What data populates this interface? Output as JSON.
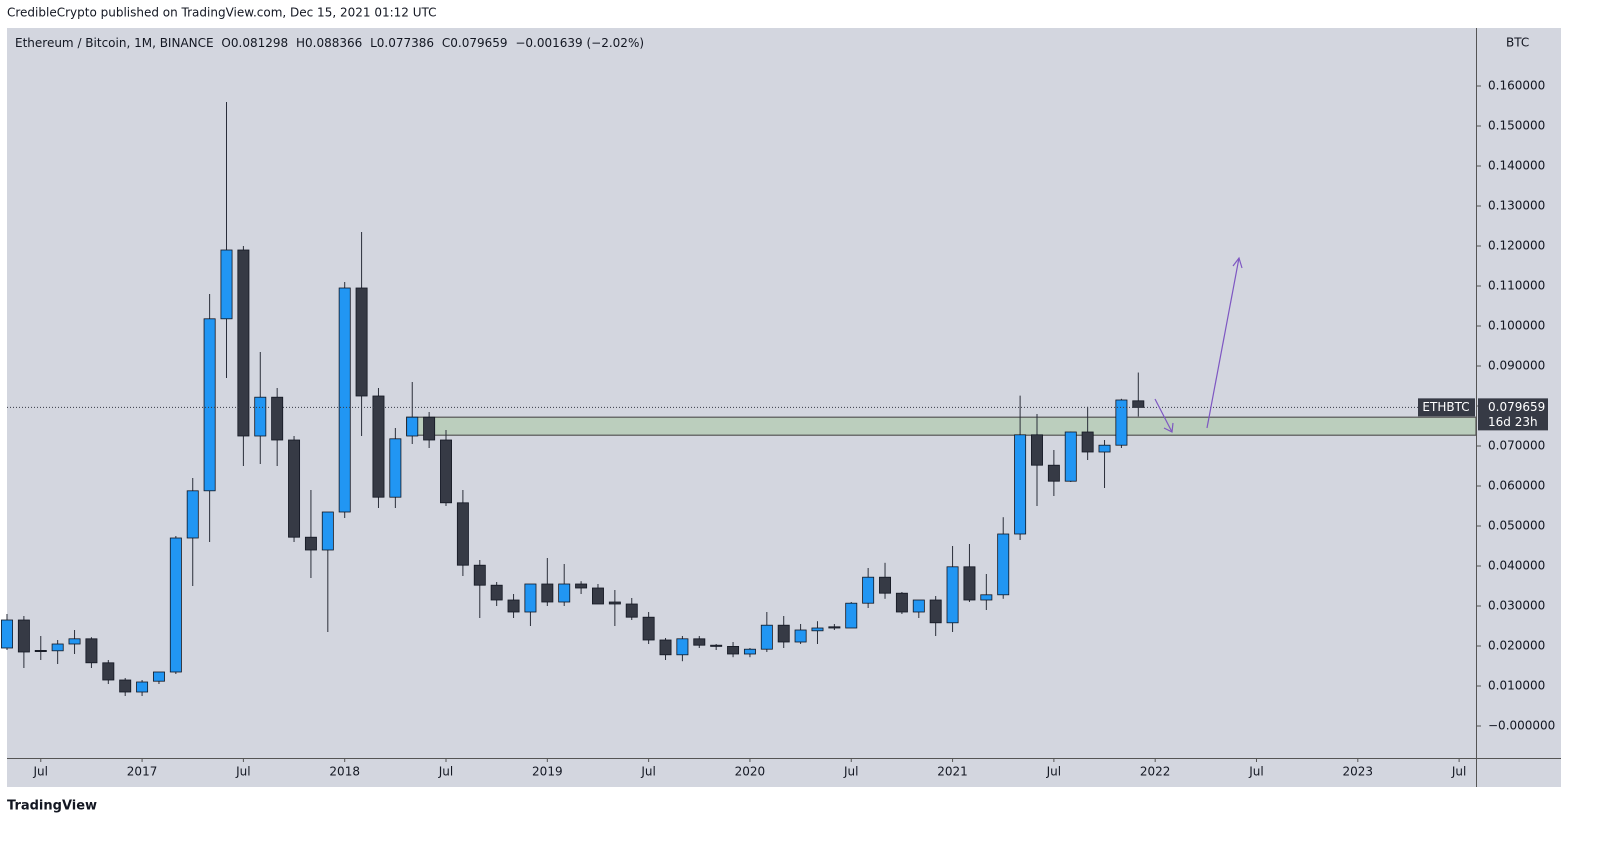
{
  "header": {
    "author_line": "CredibleCrypto published on TradingView.com, Dec 15, 2021 01:12 UTC"
  },
  "brand": "TradingView",
  "chart_data": {
    "type": "candlestick",
    "legend_title": "Ethereum / Bitcoin, 1M, BINANCE",
    "ohlc_labels": [
      "O",
      "H",
      "L",
      "C"
    ],
    "change": "−0.001639 (−2.02%)",
    "symbol": "ETHBTC",
    "countdown": "16d 23h",
    "axis_unit": "BTC",
    "up_color": "#2196f3",
    "down_color": "#363a45",
    "grid": false,
    "x": [
      "2016-05",
      "2016-06",
      "2016-07",
      "2016-08",
      "2016-09",
      "2016-10",
      "2016-11",
      "2016-12",
      "2017-01",
      "2017-02",
      "2017-03",
      "2017-04",
      "2017-05",
      "2017-06",
      "2017-07",
      "2017-08",
      "2017-09",
      "2017-10",
      "2017-11",
      "2017-12",
      "2018-01",
      "2018-02",
      "2018-03",
      "2018-04",
      "2018-05",
      "2018-06",
      "2018-07",
      "2018-08",
      "2018-09",
      "2018-10",
      "2018-11",
      "2018-12",
      "2019-01",
      "2019-02",
      "2019-03",
      "2019-04",
      "2019-05",
      "2019-06",
      "2019-07",
      "2019-08",
      "2019-09",
      "2019-10",
      "2019-11",
      "2019-12",
      "2020-01",
      "2020-02",
      "2020-03",
      "2020-04",
      "2020-05",
      "2020-06",
      "2020-07",
      "2020-08",
      "2020-09",
      "2020-10",
      "2020-11",
      "2020-12",
      "2021-01",
      "2021-02",
      "2021-03",
      "2021-04",
      "2021-05",
      "2021-06",
      "2021-07",
      "2021-08",
      "2021-09",
      "2021-10",
      "2021-11",
      "2021-12"
    ],
    "open": [
      0.0195,
      0.0265,
      0.0189,
      0.0188,
      0.0205,
      0.0218,
      0.0158,
      0.0115,
      0.0085,
      0.0112,
      0.0135,
      0.047,
      0.0588,
      0.1018,
      0.119,
      0.0725,
      0.0822,
      0.0715,
      0.0472,
      0.044,
      0.0535,
      0.1095,
      0.0825,
      0.0572,
      0.0725,
      0.0772,
      0.0715,
      0.0558,
      0.0402,
      0.0352,
      0.0315,
      0.0285,
      0.0355,
      0.031,
      0.0355,
      0.0345,
      0.031,
      0.0305,
      0.0272,
      0.0215,
      0.0178,
      0.0218,
      0.0202,
      0.0199,
      0.018,
      0.0192,
      0.0252,
      0.021,
      0.0238,
      0.0248,
      0.0245,
      0.0307,
      0.0372,
      0.0332,
      0.0285,
      0.0315,
      0.0258,
      0.0398,
      0.0315,
      0.0328,
      0.048,
      0.0728,
      0.0652,
      0.0612,
      0.0735,
      0.0685,
      0.0702,
      0.081298
    ],
    "high": [
      0.028,
      0.0275,
      0.0225,
      0.0215,
      0.024,
      0.0222,
      0.0165,
      0.012,
      0.0115,
      0.0135,
      0.0475,
      0.062,
      0.108,
      0.156,
      0.12,
      0.0935,
      0.0845,
      0.0725,
      0.059,
      0.0535,
      0.111,
      0.1235,
      0.0845,
      0.0745,
      0.086,
      0.0785,
      0.074,
      0.059,
      0.0415,
      0.036,
      0.033,
      0.0355,
      0.042,
      0.0405,
      0.0362,
      0.0355,
      0.034,
      0.032,
      0.0285,
      0.022,
      0.0225,
      0.0225,
      0.0205,
      0.021,
      0.0195,
      0.0285,
      0.0275,
      0.0255,
      0.0262,
      0.0255,
      0.031,
      0.0395,
      0.0408,
      0.0335,
      0.031,
      0.0325,
      0.045,
      0.0455,
      0.038,
      0.0522,
      0.0826,
      0.078,
      0.069,
      0.0736,
      0.0798,
      0.0715,
      0.0818,
      0.088366
    ],
    "low": [
      0.019,
      0.0145,
      0.0165,
      0.0155,
      0.018,
      0.0145,
      0.0105,
      0.0075,
      0.0075,
      0.0105,
      0.013,
      0.035,
      0.046,
      0.087,
      0.065,
      0.0655,
      0.065,
      0.046,
      0.037,
      0.0235,
      0.052,
      0.0725,
      0.0545,
      0.0545,
      0.0705,
      0.0695,
      0.055,
      0.0375,
      0.027,
      0.03,
      0.027,
      0.025,
      0.03,
      0.03,
      0.033,
      0.031,
      0.025,
      0.0265,
      0.0205,
      0.0165,
      0.0162,
      0.0195,
      0.019,
      0.0172,
      0.0172,
      0.0185,
      0.0195,
      0.0205,
      0.0205,
      0.024,
      0.0245,
      0.0295,
      0.0318,
      0.028,
      0.027,
      0.0225,
      0.0235,
      0.031,
      0.029,
      0.0318,
      0.0465,
      0.055,
      0.0575,
      0.061,
      0.0665,
      0.0595,
      0.0695,
      0.077386
    ],
    "close": [
      0.0265,
      0.0185,
      0.0186,
      0.0205,
      0.0218,
      0.0158,
      0.0115,
      0.0085,
      0.011,
      0.0135,
      0.047,
      0.0588,
      0.1018,
      0.119,
      0.0725,
      0.0822,
      0.0715,
      0.0472,
      0.044,
      0.0535,
      0.1095,
      0.0825,
      0.0572,
      0.0718,
      0.0772,
      0.0715,
      0.0558,
      0.0402,
      0.0352,
      0.0315,
      0.0285,
      0.0355,
      0.031,
      0.0355,
      0.0345,
      0.0305,
      0.0305,
      0.0272,
      0.0215,
      0.0178,
      0.0218,
      0.0202,
      0.0199,
      0.018,
      0.0192,
      0.0252,
      0.021,
      0.024,
      0.0245,
      0.0245,
      0.0307,
      0.0372,
      0.0332,
      0.0285,
      0.0315,
      0.0258,
      0.0398,
      0.0315,
      0.0328,
      0.048,
      0.0728,
      0.0652,
      0.0612,
      0.0735,
      0.0685,
      0.0702,
      0.0815,
      0.079659
    ],
    "zone": [
      0.0727,
      0.0772
    ],
    "xlim": [
      "2016-05",
      "2023-08"
    ],
    "xticks": [
      {
        "value": "2016-07",
        "label": "Jul"
      },
      {
        "value": "2017-01",
        "label": "2017"
      },
      {
        "value": "2017-07",
        "label": "Jul"
      },
      {
        "value": "2018-01",
        "label": "2018"
      },
      {
        "value": "2018-07",
        "label": "Jul"
      },
      {
        "value": "2019-01",
        "label": "2019"
      },
      {
        "value": "2019-07",
        "label": "Jul"
      },
      {
        "value": "2020-01",
        "label": "2020"
      },
      {
        "value": "2020-07",
        "label": "Jul"
      },
      {
        "value": "2021-01",
        "label": "2021"
      },
      {
        "value": "2021-07",
        "label": "Jul"
      },
      {
        "value": "2022-01",
        "label": "2022"
      },
      {
        "value": "2022-07",
        "label": "Jul"
      },
      {
        "value": "2023-01",
        "label": "2023"
      },
      {
        "value": "2023-07",
        "label": "Jul"
      }
    ],
    "ylim": [
      -0.008,
      0.1745
    ],
    "yticks": [
      {
        "value": 0,
        "label": "−0.000000"
      },
      {
        "value": 0.01,
        "label": "0.010000"
      },
      {
        "value": 0.02,
        "label": "0.020000"
      },
      {
        "value": 0.03,
        "label": "0.030000"
      },
      {
        "value": 0.04,
        "label": "0.040000"
      },
      {
        "value": 0.05,
        "label": "0.050000"
      },
      {
        "value": 0.06,
        "label": "0.060000"
      },
      {
        "value": 0.07,
        "label": "0.070000"
      },
      {
        "value": 0.08,
        "label": "0.080000"
      },
      {
        "value": 0.09,
        "label": "0.090000"
      },
      {
        "value": 0.1,
        "label": "0.100000"
      },
      {
        "value": 0.11,
        "label": "0.110000"
      },
      {
        "value": 0.12,
        "label": "0.120000"
      },
      {
        "value": 0.13,
        "label": "0.130000"
      },
      {
        "value": 0.14,
        "label": "0.140000"
      },
      {
        "value": 0.15,
        "label": "0.150000"
      },
      {
        "value": 0.16,
        "label": "0.160000"
      }
    ]
  }
}
